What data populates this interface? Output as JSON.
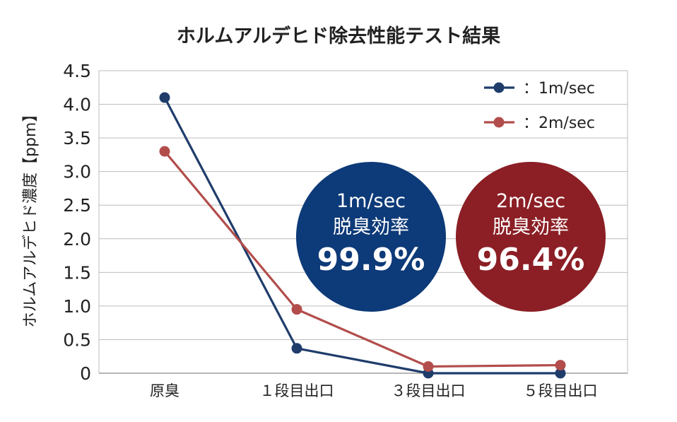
{
  "chart_data": {
    "type": "line",
    "title": "ホルムアルデヒド除去性能テスト結果",
    "ylabel": "ホルムアルデヒド濃度【ppm】",
    "xlabel": "",
    "categories": [
      "原臭",
      "１段目出口",
      "３段目出口",
      "５段目出口"
    ],
    "ylim": [
      0,
      4.5
    ],
    "yticks": [
      "0",
      "0.5",
      "1.0",
      "1.5",
      "2.0",
      "2.5",
      "3.0",
      "3.5",
      "4.0",
      "4.5"
    ],
    "ytick_values": [
      0,
      0.5,
      1.0,
      1.5,
      2.0,
      2.5,
      3.0,
      3.5,
      4.0,
      4.5
    ],
    "grid": true,
    "legend_position": "top-right",
    "series": [
      {
        "name": "：1m/sec",
        "color": "#1f3c6b",
        "values": [
          4.1,
          0.37,
          0.0,
          0.0
        ]
      },
      {
        "name": "：2m/sec",
        "color": "#b24d4b",
        "values": [
          3.3,
          0.95,
          0.1,
          0.12
        ]
      }
    ],
    "badges": [
      {
        "speed": "1m/sec",
        "label": "脱臭効率",
        "value": "99.9%",
        "color": "#0d3a78"
      },
      {
        "speed": "2m/sec",
        "label": "脱臭効率",
        "value": "96.4%",
        "color": "#8b1f25"
      }
    ]
  }
}
